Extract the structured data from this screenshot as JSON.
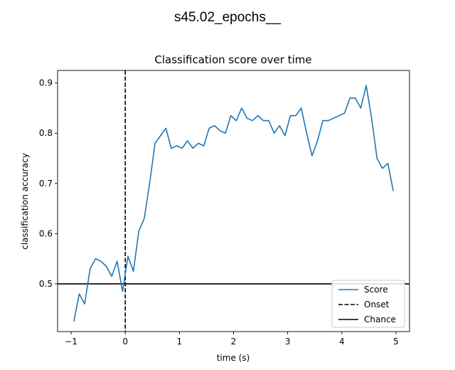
{
  "figure": {
    "suptitle": "s45.02_epochs__"
  },
  "chart_data": {
    "type": "line",
    "title": "Classification score over time",
    "xlabel": "time (s)",
    "ylabel": "classification accuracy",
    "xlim": [
      -1.25,
      5.25
    ],
    "ylim": [
      0.405,
      0.925
    ],
    "xticks": [
      -1,
      0,
      1,
      2,
      3,
      4,
      5
    ],
    "xtick_labels": [
      "−1",
      "0",
      "1",
      "2",
      "3",
      "4",
      "5"
    ],
    "yticks": [
      0.5,
      0.6,
      0.7,
      0.8,
      0.9
    ],
    "ytick_labels": [
      "0.5",
      "0.6",
      "0.7",
      "0.8",
      "0.9"
    ],
    "grid": false,
    "legend_position": "lower-right",
    "series": [
      {
        "name": "Score",
        "color": "#1f77b4",
        "style": "solid",
        "x": [
          -0.95,
          -0.85,
          -0.75,
          -0.65,
          -0.55,
          -0.45,
          -0.35,
          -0.25,
          -0.15,
          -0.05,
          0.05,
          0.15,
          0.25,
          0.35,
          0.45,
          0.55,
          0.65,
          0.75,
          0.85,
          0.95,
          1.05,
          1.15,
          1.25,
          1.35,
          1.45,
          1.55,
          1.65,
          1.75,
          1.85,
          1.95,
          2.05,
          2.15,
          2.25,
          2.35,
          2.45,
          2.55,
          2.65,
          2.75,
          2.85,
          2.95,
          3.05,
          3.15,
          3.25,
          3.35,
          3.45,
          3.55,
          3.65,
          3.75,
          3.85,
          3.95,
          4.05,
          4.15,
          4.25,
          4.35,
          4.45,
          4.55,
          4.65,
          4.75,
          4.85,
          4.95
        ],
        "y": [
          0.425,
          0.48,
          0.46,
          0.53,
          0.55,
          0.545,
          0.535,
          0.515,
          0.545,
          0.485,
          0.555,
          0.525,
          0.605,
          0.63,
          0.7,
          0.78,
          0.795,
          0.81,
          0.77,
          0.775,
          0.77,
          0.785,
          0.77,
          0.78,
          0.775,
          0.81,
          0.815,
          0.805,
          0.8,
          0.835,
          0.825,
          0.85,
          0.83,
          0.825,
          0.835,
          0.825,
          0.825,
          0.8,
          0.815,
          0.795,
          0.835,
          0.835,
          0.85,
          0.8,
          0.755,
          0.785,
          0.825,
          0.825,
          0.83,
          0.835,
          0.84,
          0.87,
          0.87,
          0.85,
          0.895,
          0.83,
          0.75,
          0.73,
          0.74,
          0.685
        ]
      }
    ],
    "reference_lines": [
      {
        "name": "Onset",
        "orientation": "vertical",
        "value": 0,
        "color": "#000000",
        "style": "dashed"
      },
      {
        "name": "Chance",
        "orientation": "horizontal",
        "value": 0.5,
        "color": "#000000",
        "style": "solid"
      }
    ],
    "legend": [
      {
        "label": "Score",
        "color": "#1f77b4",
        "style": "solid"
      },
      {
        "label": "Onset",
        "color": "#000000",
        "style": "dashed"
      },
      {
        "label": "Chance",
        "color": "#000000",
        "style": "solid"
      }
    ]
  }
}
